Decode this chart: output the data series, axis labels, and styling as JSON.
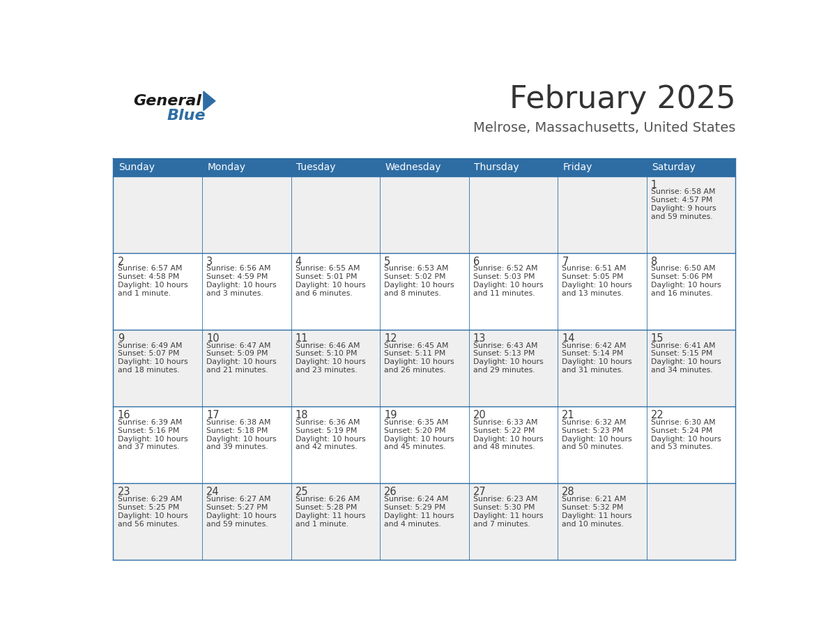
{
  "title": "February 2025",
  "subtitle": "Melrose, Massachusetts, United States",
  "days_of_week": [
    "Sunday",
    "Monday",
    "Tuesday",
    "Wednesday",
    "Thursday",
    "Friday",
    "Saturday"
  ],
  "header_bg": "#2E6DA4",
  "header_text": "#FFFFFF",
  "cell_bg_even": "#EFEFEF",
  "cell_bg_odd": "#FFFFFF",
  "border_color": "#2E6DA4",
  "text_color": "#3D3D3D",
  "title_color": "#333333",
  "subtitle_color": "#555555",
  "logo_general_color": "#1A1A1A",
  "logo_blue_color": "#2E6DA4",
  "calendar_data": [
    [
      {
        "day": null
      },
      {
        "day": null
      },
      {
        "day": null
      },
      {
        "day": null
      },
      {
        "day": null
      },
      {
        "day": null
      },
      {
        "day": 1,
        "sunrise": "6:58 AM",
        "sunset": "4:57 PM",
        "daylight_line1": "Daylight: 9 hours",
        "daylight_line2": "and 59 minutes."
      }
    ],
    [
      {
        "day": 2,
        "sunrise": "6:57 AM",
        "sunset": "4:58 PM",
        "daylight_line1": "Daylight: 10 hours",
        "daylight_line2": "and 1 minute."
      },
      {
        "day": 3,
        "sunrise": "6:56 AM",
        "sunset": "4:59 PM",
        "daylight_line1": "Daylight: 10 hours",
        "daylight_line2": "and 3 minutes."
      },
      {
        "day": 4,
        "sunrise": "6:55 AM",
        "sunset": "5:01 PM",
        "daylight_line1": "Daylight: 10 hours",
        "daylight_line2": "and 6 minutes."
      },
      {
        "day": 5,
        "sunrise": "6:53 AM",
        "sunset": "5:02 PM",
        "daylight_line1": "Daylight: 10 hours",
        "daylight_line2": "and 8 minutes."
      },
      {
        "day": 6,
        "sunrise": "6:52 AM",
        "sunset": "5:03 PM",
        "daylight_line1": "Daylight: 10 hours",
        "daylight_line2": "and 11 minutes."
      },
      {
        "day": 7,
        "sunrise": "6:51 AM",
        "sunset": "5:05 PM",
        "daylight_line1": "Daylight: 10 hours",
        "daylight_line2": "and 13 minutes."
      },
      {
        "day": 8,
        "sunrise": "6:50 AM",
        "sunset": "5:06 PM",
        "daylight_line1": "Daylight: 10 hours",
        "daylight_line2": "and 16 minutes."
      }
    ],
    [
      {
        "day": 9,
        "sunrise": "6:49 AM",
        "sunset": "5:07 PM",
        "daylight_line1": "Daylight: 10 hours",
        "daylight_line2": "and 18 minutes."
      },
      {
        "day": 10,
        "sunrise": "6:47 AM",
        "sunset": "5:09 PM",
        "daylight_line1": "Daylight: 10 hours",
        "daylight_line2": "and 21 minutes."
      },
      {
        "day": 11,
        "sunrise": "6:46 AM",
        "sunset": "5:10 PM",
        "daylight_line1": "Daylight: 10 hours",
        "daylight_line2": "and 23 minutes."
      },
      {
        "day": 12,
        "sunrise": "6:45 AM",
        "sunset": "5:11 PM",
        "daylight_line1": "Daylight: 10 hours",
        "daylight_line2": "and 26 minutes."
      },
      {
        "day": 13,
        "sunrise": "6:43 AM",
        "sunset": "5:13 PM",
        "daylight_line1": "Daylight: 10 hours",
        "daylight_line2": "and 29 minutes."
      },
      {
        "day": 14,
        "sunrise": "6:42 AM",
        "sunset": "5:14 PM",
        "daylight_line1": "Daylight: 10 hours",
        "daylight_line2": "and 31 minutes."
      },
      {
        "day": 15,
        "sunrise": "6:41 AM",
        "sunset": "5:15 PM",
        "daylight_line1": "Daylight: 10 hours",
        "daylight_line2": "and 34 minutes."
      }
    ],
    [
      {
        "day": 16,
        "sunrise": "6:39 AM",
        "sunset": "5:16 PM",
        "daylight_line1": "Daylight: 10 hours",
        "daylight_line2": "and 37 minutes."
      },
      {
        "day": 17,
        "sunrise": "6:38 AM",
        "sunset": "5:18 PM",
        "daylight_line1": "Daylight: 10 hours",
        "daylight_line2": "and 39 minutes."
      },
      {
        "day": 18,
        "sunrise": "6:36 AM",
        "sunset": "5:19 PM",
        "daylight_line1": "Daylight: 10 hours",
        "daylight_line2": "and 42 minutes."
      },
      {
        "day": 19,
        "sunrise": "6:35 AM",
        "sunset": "5:20 PM",
        "daylight_line1": "Daylight: 10 hours",
        "daylight_line2": "and 45 minutes."
      },
      {
        "day": 20,
        "sunrise": "6:33 AM",
        "sunset": "5:22 PM",
        "daylight_line1": "Daylight: 10 hours",
        "daylight_line2": "and 48 minutes."
      },
      {
        "day": 21,
        "sunrise": "6:32 AM",
        "sunset": "5:23 PM",
        "daylight_line1": "Daylight: 10 hours",
        "daylight_line2": "and 50 minutes."
      },
      {
        "day": 22,
        "sunrise": "6:30 AM",
        "sunset": "5:24 PM",
        "daylight_line1": "Daylight: 10 hours",
        "daylight_line2": "and 53 minutes."
      }
    ],
    [
      {
        "day": 23,
        "sunrise": "6:29 AM",
        "sunset": "5:25 PM",
        "daylight_line1": "Daylight: 10 hours",
        "daylight_line2": "and 56 minutes."
      },
      {
        "day": 24,
        "sunrise": "6:27 AM",
        "sunset": "5:27 PM",
        "daylight_line1": "Daylight: 10 hours",
        "daylight_line2": "and 59 minutes."
      },
      {
        "day": 25,
        "sunrise": "6:26 AM",
        "sunset": "5:28 PM",
        "daylight_line1": "Daylight: 11 hours",
        "daylight_line2": "and 1 minute."
      },
      {
        "day": 26,
        "sunrise": "6:24 AM",
        "sunset": "5:29 PM",
        "daylight_line1": "Daylight: 11 hours",
        "daylight_line2": "and 4 minutes."
      },
      {
        "day": 27,
        "sunrise": "6:23 AM",
        "sunset": "5:30 PM",
        "daylight_line1": "Daylight: 11 hours",
        "daylight_line2": "and 7 minutes."
      },
      {
        "day": 28,
        "sunrise": "6:21 AM",
        "sunset": "5:32 PM",
        "daylight_line1": "Daylight: 11 hours",
        "daylight_line2": "and 10 minutes."
      },
      {
        "day": null
      }
    ]
  ]
}
